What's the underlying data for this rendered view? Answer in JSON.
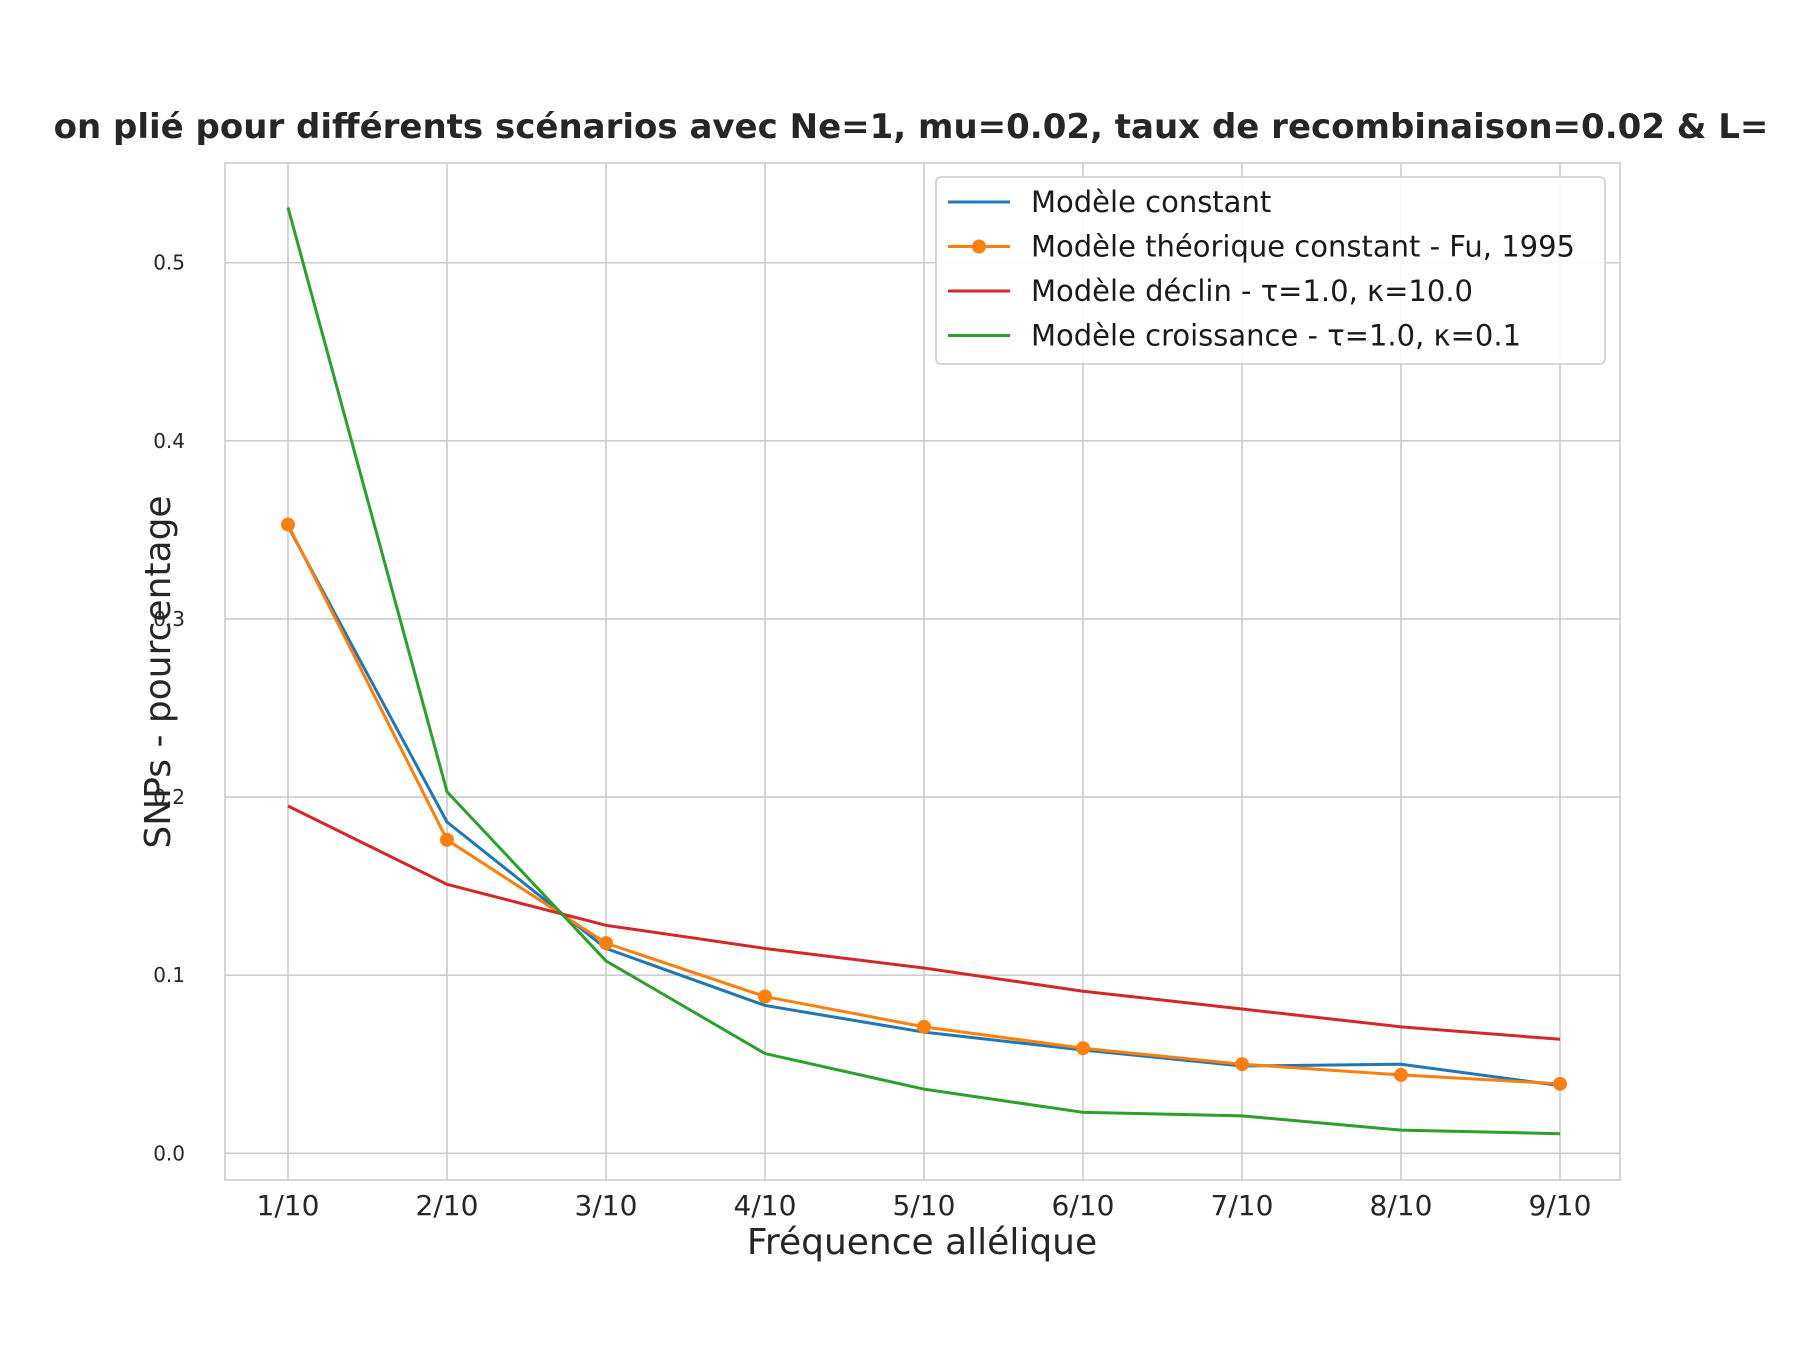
{
  "chart_data": {
    "type": "line",
    "title": "on plié pour différents scénarios avec Ne=1, mu=0.02, taux de recombinaison=0.02 & L=",
    "xlabel": "Fréquence allélique",
    "ylabel": "SNPs - pourcentage",
    "categories": [
      "1/10",
      "2/10",
      "3/10",
      "4/10",
      "5/10",
      "6/10",
      "7/10",
      "8/10",
      "9/10"
    ],
    "ylim": [
      -0.015,
      0.556
    ],
    "yticks": [
      "0.0",
      "0.1",
      "0.2",
      "0.3",
      "0.4",
      "0.5"
    ],
    "grid": true,
    "legend_position": "top-right",
    "series": [
      {
        "name": "Modèle constant",
        "color": "#1f77b4",
        "marker": false,
        "values": [
          0.352,
          0.186,
          0.115,
          0.083,
          0.068,
          0.058,
          0.049,
          0.05,
          0.038
        ]
      },
      {
        "name": "Modèle théorique constant - Fu, 1995",
        "color": "#ff7f0e",
        "marker": true,
        "values": [
          0.353,
          0.176,
          0.118,
          0.088,
          0.071,
          0.059,
          0.05,
          0.044,
          0.039
        ]
      },
      {
        "name": "Modèle déclin - τ=1.0, κ=10.0",
        "color": "#d62728",
        "marker": false,
        "values": [
          0.195,
          0.151,
          0.128,
          0.115,
          0.104,
          0.091,
          0.081,
          0.071,
          0.064
        ]
      },
      {
        "name": "Modèle croissance - τ=1.0, κ=0.1",
        "color": "#2ca02c",
        "marker": false,
        "values": [
          0.531,
          0.203,
          0.108,
          0.056,
          0.036,
          0.023,
          0.021,
          0.013,
          0.011
        ]
      }
    ]
  }
}
